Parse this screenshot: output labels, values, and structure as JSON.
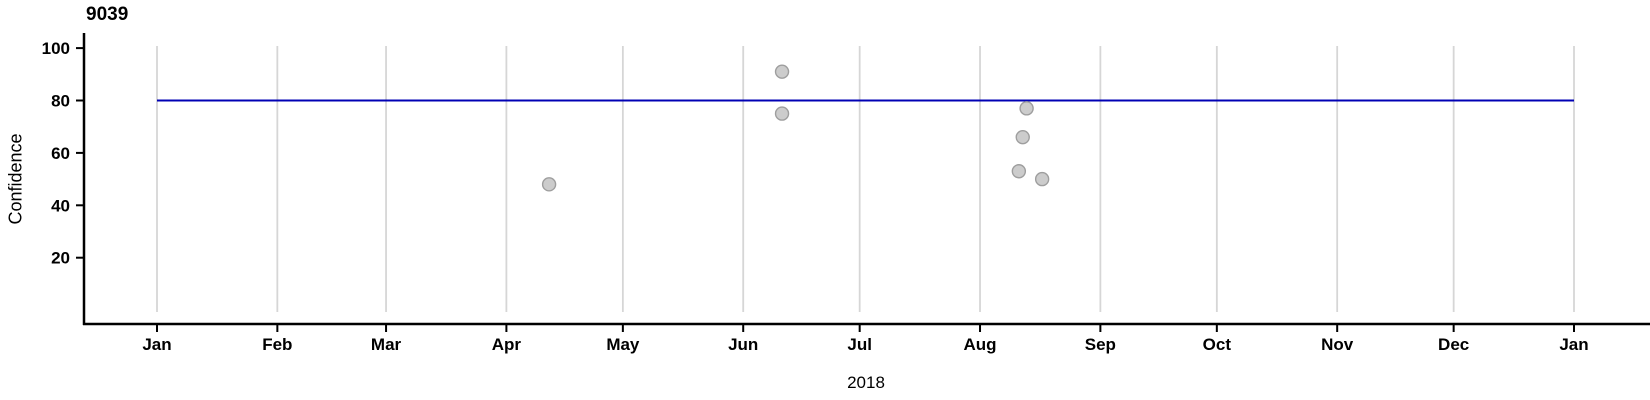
{
  "chart_data": {
    "type": "scatter",
    "title": "9039",
    "xlabel": "2018",
    "ylabel": "Confidence",
    "x_axis": {
      "ticks": [
        {
          "label": "Jan",
          "date": "2018-01-01"
        },
        {
          "label": "Feb",
          "date": "2018-02-01"
        },
        {
          "label": "Mar",
          "date": "2018-03-01"
        },
        {
          "label": "Apr",
          "date": "2018-04-01"
        },
        {
          "label": "May",
          "date": "2018-05-01"
        },
        {
          "label": "Jun",
          "date": "2018-06-01"
        },
        {
          "label": "Jul",
          "date": "2018-07-01"
        },
        {
          "label": "Aug",
          "date": "2018-08-01"
        },
        {
          "label": "Sep",
          "date": "2018-09-01"
        },
        {
          "label": "Oct",
          "date": "2018-10-01"
        },
        {
          "label": "Nov",
          "date": "2018-11-01"
        },
        {
          "label": "Dec",
          "date": "2018-12-01"
        },
        {
          "label": "Jan",
          "date": "2019-01-01"
        }
      ]
    },
    "y_axis": {
      "ticks": [
        100,
        80,
        60,
        40,
        20
      ],
      "range": [
        0,
        101
      ]
    },
    "grid": "vertical-only",
    "legend": "none",
    "reference_line": {
      "value": 80,
      "start": "2018-01-01",
      "end": "2019-01-01"
    },
    "points": [
      {
        "date": "2018-04-12",
        "value": 48
      },
      {
        "date": "2018-06-11",
        "value": 91
      },
      {
        "date": "2018-06-11",
        "value": 75
      },
      {
        "date": "2018-08-11",
        "value": 53
      },
      {
        "date": "2018-08-12",
        "value": 66
      },
      {
        "date": "2018-08-13",
        "value": 77
      },
      {
        "date": "2018-08-17",
        "value": 50
      }
    ],
    "colors": {
      "reference_line": "#0000b4",
      "point_fill": "#cccccc",
      "point_stroke": "#9e9e9e",
      "gridline": "#d6d6d6",
      "axis": "#000000",
      "background": "#ffffff"
    }
  }
}
